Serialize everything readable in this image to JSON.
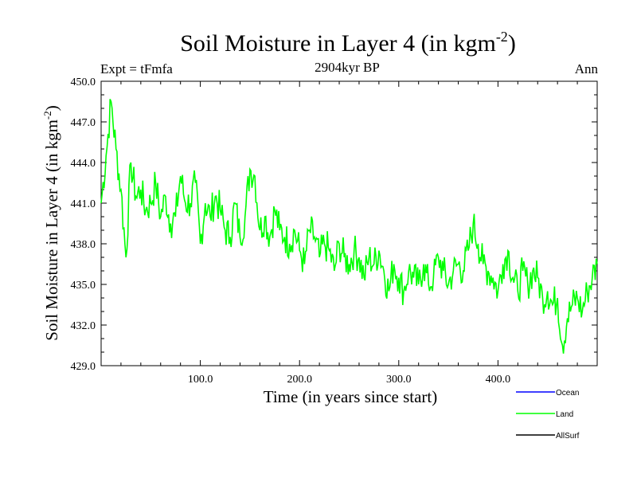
{
  "chart_data": {
    "type": "line",
    "title": "Soil Moisture in Layer 4 (in kgm",
    "title_superscript": "-2",
    "title_close": ")",
    "subtitle": "2904kyr BP",
    "left_label": "Expt = tFmfa",
    "right_label": "Ann",
    "xlabel": "Time (in years since start)",
    "ylabel": "Soil Moisture in Layer 4 (in kgm",
    "ylabel_superscript": "-2",
    "ylabel_close": ")",
    "xlim": [
      0,
      500
    ],
    "ylim": [
      429.0,
      450.0
    ],
    "xticks": [
      100,
      200,
      300,
      400
    ],
    "xtick_labels": [
      "100.0",
      "200.0",
      "300.0",
      "400.0"
    ],
    "yticks": [
      429,
      432,
      435,
      438,
      441,
      444,
      447,
      450
    ],
    "ytick_labels": [
      "429.0",
      "432.0",
      "435.0",
      "438.0",
      "441.0",
      "444.0",
      "447.0",
      "450.0"
    ],
    "legend": [
      {
        "name": "Ocean",
        "color": "#0000ff"
      },
      {
        "name": "Land",
        "color": "#00ff00"
      },
      {
        "name": "AllSurf",
        "color": "#000000"
      }
    ],
    "series": [
      {
        "name": "Land",
        "color": "#00ff00",
        "x": [
          0,
          5,
          10,
          15,
          20,
          25,
          30,
          35,
          40,
          45,
          50,
          55,
          60,
          65,
          70,
          75,
          80,
          85,
          90,
          95,
          100,
          105,
          110,
          115,
          120,
          125,
          130,
          135,
          140,
          145,
          150,
          155,
          160,
          165,
          170,
          175,
          180,
          185,
          190,
          195,
          200,
          205,
          210,
          215,
          220,
          225,
          230,
          235,
          240,
          245,
          250,
          255,
          260,
          265,
          270,
          275,
          280,
          285,
          290,
          295,
          300,
          305,
          310,
          315,
          320,
          325,
          330,
          335,
          340,
          345,
          350,
          355,
          360,
          365,
          370,
          375,
          380,
          385,
          390,
          395,
          400,
          405,
          410,
          415,
          420,
          425,
          430,
          435,
          440,
          445,
          450,
          455,
          460,
          465,
          470,
          475,
          480,
          485,
          490,
          495,
          500
        ],
        "values": [
          441.0,
          444.5,
          448.5,
          445.0,
          442.0,
          437.0,
          444.0,
          441.5,
          442.0,
          440.5,
          441.0,
          442.5,
          440.0,
          441.5,
          439.5,
          440.0,
          443.0,
          441.0,
          441.0,
          442.5,
          438.0,
          441.0,
          440.0,
          441.5,
          440.5,
          439.0,
          438.5,
          441.0,
          438.5,
          440.0,
          443.5,
          443.0,
          439.0,
          440.0,
          438.5,
          440.5,
          439.0,
          438.5,
          438.0,
          439.0,
          437.5,
          436.5,
          439.0,
          438.5,
          437.0,
          438.0,
          437.5,
          436.0,
          438.0,
          437.0,
          436.5,
          437.5,
          437.0,
          435.5,
          437.0,
          436.5,
          437.5,
          436.0,
          434.5,
          436.5,
          435.5,
          434.5,
          436.0,
          435.5,
          435.0,
          436.5,
          435.0,
          435.5,
          437.0,
          436.0,
          435.0,
          436.0,
          436.5,
          436.0,
          437.5,
          439.5,
          438.0,
          436.5,
          436.0,
          435.5,
          434.5,
          436.5,
          437.5,
          435.5,
          434.5,
          436.0,
          435.0,
          436.0,
          435.5,
          434.0,
          434.5,
          433.5,
          434.0,
          430.5,
          432.5,
          433.5,
          434.0,
          433.0,
          434.5,
          435.5,
          436.5
        ]
      }
    ]
  }
}
